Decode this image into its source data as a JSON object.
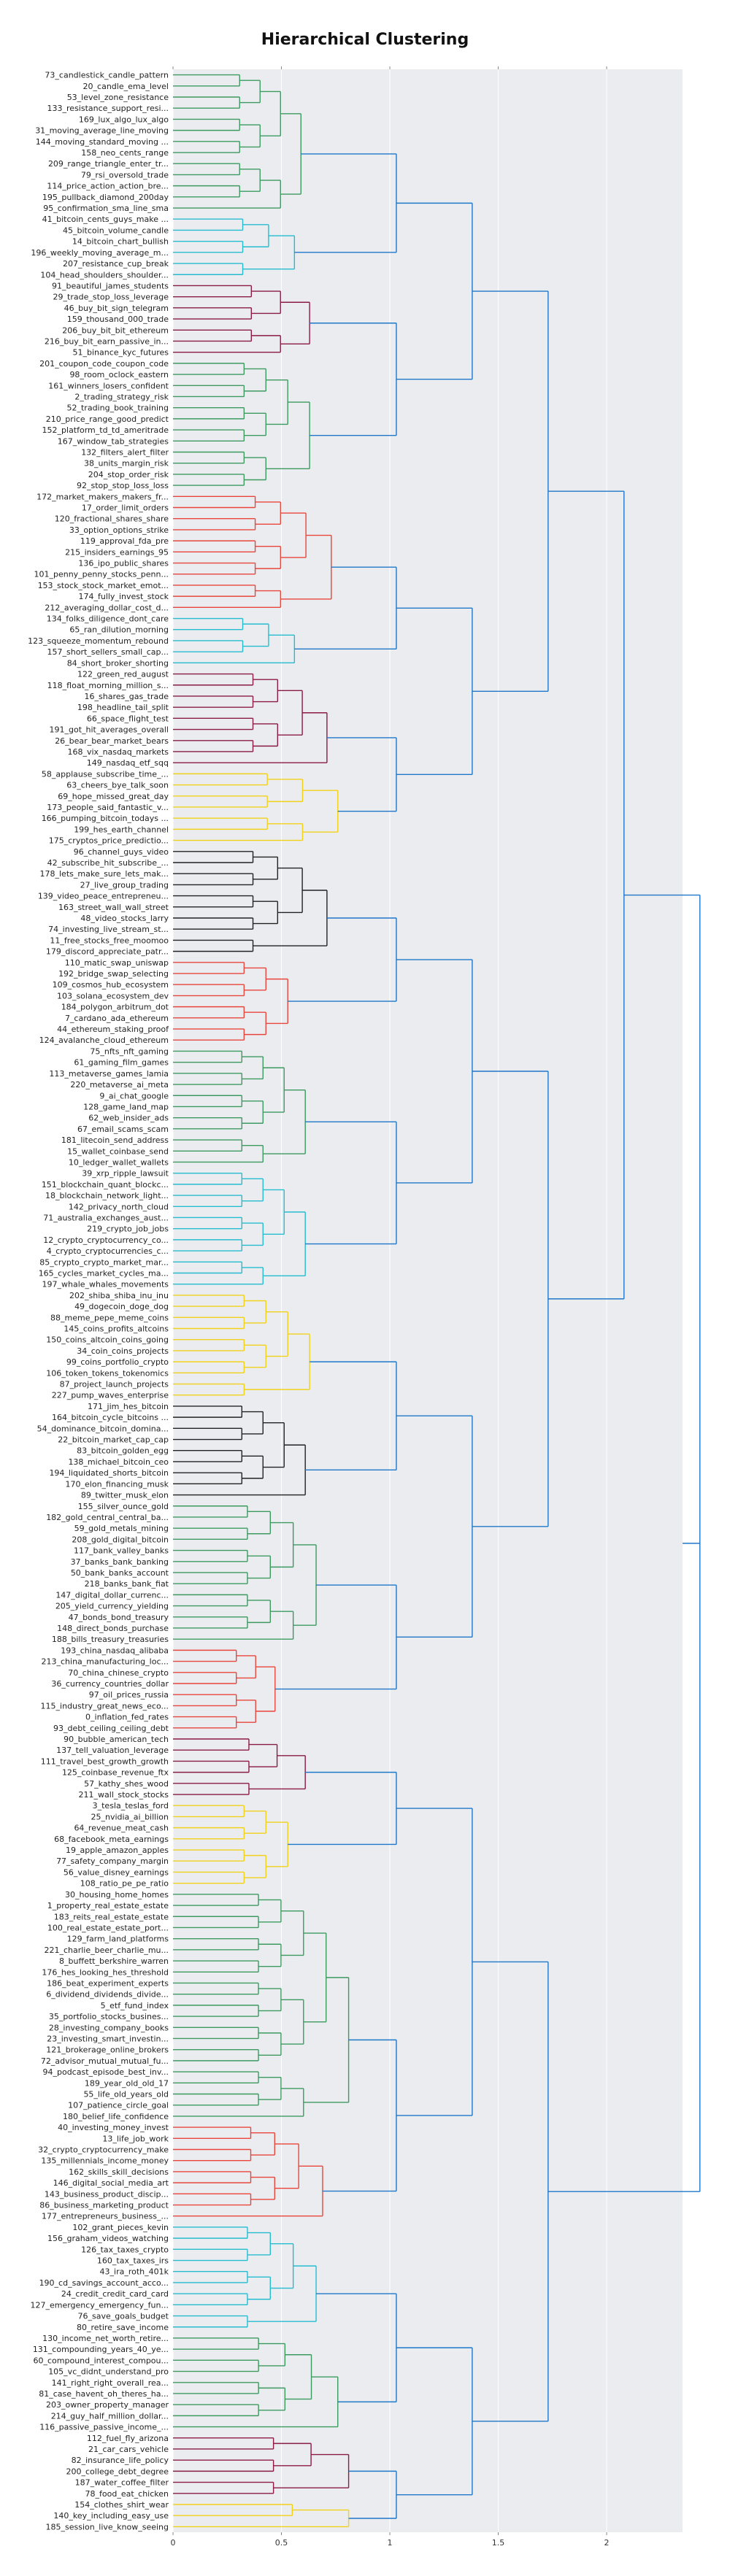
{
  "chart_data": {
    "type": "dendrogram",
    "title": "Hierarchical Clustering",
    "xlim": [
      0,
      2.35
    ],
    "x_ticks": [
      0,
      0.5,
      1,
      1.5,
      2
    ],
    "x_tick_labels": [
      "0",
      "0.5",
      "1",
      "1.5",
      "2"
    ],
    "grid": true,
    "leaves": [
      "73_candlestick_candle_pattern",
      "20_candle_ema_level",
      "53_level_zone_resistance",
      "133_resistance_support_resi...",
      "169_lux_algo_lux_algo",
      "31_moving_average_line_moving",
      "144_moving_standard_moving ...",
      "158_neo_cents_range",
      "209_range_triangle_enter_tr...",
      "79_rsi_oversold_trade",
      "114_price_action_action_bre...",
      "195_pullback_diamond_200day",
      "95_confirmation_sma_line_sma",
      "41_bitcoin_cents_guys_make ...",
      "45_bitcoin_volume_candle",
      "14_bitcoin_chart_bullish",
      "196_weekly_moving_average_m...",
      "207_resistance_cup_break",
      "104_head_shoulders_shoulder...",
      "91_beautiful_james_students",
      "29_trade_stop_loss_leverage",
      "46_buy_bit_sign_telegram",
      "159_thousand_000_trade",
      "206_buy_bit_bit_ethereum",
      "216_buy_bit_earn_passive_in...",
      "51_binance_kyc_futures",
      "201_coupon_code_coupon_code",
      "98_room_oclock_eastern",
      "161_winners_losers_confident",
      "2_trading_strategy_risk",
      "52_trading_book_training",
      "210_price_range_good_predict",
      "152_platform_td_td_ameritrade",
      "167_window_tab_strategies",
      "132_filters_alert_filter",
      "38_units_margin_risk",
      "204_stop_order_risk",
      "92_stop_stop_loss_loss",
      "172_market_makers_makers_fr...",
      "17_order_limit_orders",
      "120_fractional_shares_share",
      "33_option_options_strike",
      "119_approval_fda_pre",
      "215_insiders_earnings_95",
      "136_ipo_public_shares",
      "101_penny_penny_stocks_penn...",
      "153_stock_stock_market_emot...",
      "174_fully_invest_stock",
      "212_averaging_dollar_cost_d...",
      "134_folks_diligence_dont_care",
      "65_ran_dilution_morning",
      "123_squeeze_momentum_rebound",
      "157_short_sellers_small_cap...",
      "84_short_broker_shorting",
      "122_green_red_august",
      "118_float_morning_million_s...",
      "16_shares_gas_trade",
      "198_headline_tail_split",
      "66_space_flight_test",
      "191_got_hit_averages_overall",
      "26_bear_bear_market_bears",
      "168_vix_nasdaq_markets",
      "149_nasdaq_etf_sqq",
      "58_applause_subscribe_time_...",
      "63_cheers_bye_talk_soon",
      "69_hope_missed_great_day",
      "173_people_said_fantastic_v...",
      "166_pumping_bitcoin_todays ...",
      "199_hes_earth_channel",
      "175_cryptos_price_predictio...",
      "96_channel_guys_video",
      "42_subscribe_hit_subscribe_...",
      "178_lets_make_sure_lets_mak...",
      "27_live_group_trading",
      "139_video_peace_entrepreneu...",
      "163_street_wall_wall_street",
      "48_video_stocks_larry",
      "74_investing_live_stream_st...",
      "11_free_stocks_free_moomoo",
      "179_discord_appreciate_patr...",
      "110_matic_swap_uniswap",
      "192_bridge_swap_selecting",
      "109_cosmos_hub_ecosystem",
      "103_solana_ecosystem_dev",
      "184_polygon_arbitrum_dot",
      "7_cardano_ada_ethereum",
      "44_ethereum_staking_proof",
      "124_avalanche_cloud_ethereum",
      "75_nfts_nft_gaming",
      "61_gaming_film_games",
      "113_metaverse_games_lamia",
      "220_metaverse_ai_meta",
      "9_ai_chat_google",
      "128_game_land_map",
      "62_web_insider_ads",
      "67_email_scams_scam",
      "181_litecoin_send_address",
      "15_wallet_coinbase_send",
      "10_ledger_wallet_wallets",
      "39_xrp_ripple_lawsuit",
      "151_blockchain_quant_blockc...",
      "18_blockchain_network_light...",
      "142_privacy_north_cloud",
      "71_australia_exchanges_aust...",
      "219_crypto_job_jobs",
      "12_crypto_cryptocurrency_co...",
      "4_crypto_cryptocurrencies_c...",
      "85_crypto_crypto_market_mar...",
      "165_cycles_market_cycles_ma...",
      "197_whale_whales_movements",
      "202_shiba_shiba_inu_inu",
      "49_dogecoin_doge_dog",
      "88_meme_pepe_meme_coins",
      "145_coins_profits_altcoins",
      "150_coins_altcoin_coins_going",
      "34_coin_coins_projects",
      "99_coins_portfolio_crypto",
      "106_token_tokens_tokenomics",
      "87_project_launch_projects",
      "227_pump_waves_enterprise",
      "171_jim_hes_bitcoin",
      "164_bitcoin_cycle_bitcoins ...",
      "54_dominance_bitcoin_domina...",
      "22_bitcoin_market_cap_cap",
      "83_bitcoin_golden_egg",
      "138_michael_bitcoin_ceo",
      "194_liquidated_shorts_bitcoin",
      "170_elon_financing_musk",
      "89_twitter_musk_elon",
      "155_silver_ounce_gold",
      "182_gold_central_central_ba...",
      "59_gold_metals_mining",
      "208_gold_digital_bitcoin",
      "117_bank_valley_banks",
      "37_banks_bank_banking",
      "50_bank_banks_account",
      "218_banks_bank_fiat",
      "147_digital_dollar_currenc...",
      "205_yield_currency_yielding",
      "47_bonds_bond_treasury",
      "148_direct_bonds_purchase",
      "188_bills_treasury_treasuries",
      "193_china_nasdaq_alibaba",
      "213_china_manufacturing_loc...",
      "70_china_chinese_crypto",
      "36_currency_countries_dollar",
      "97_oil_prices_russia",
      "115_industry_great_news_eco...",
      "0_inflation_fed_rates",
      "93_debt_ceiling_ceiling_debt",
      "90_bubble_american_tech",
      "137_tell_valuation_leverage",
      "111_travel_best_growth_growth",
      "125_coinbase_revenue_ftx",
      "57_kathy_shes_wood",
      "211_wall_stock_stocks",
      "3_tesla_teslas_ford",
      "25_nvidia_ai_billion",
      "64_revenue_meat_cash",
      "68_facebook_meta_earnings",
      "19_apple_amazon_apples",
      "77_safety_company_margin",
      "56_value_disney_earnings",
      "108_ratio_pe_pe_ratio",
      "30_housing_home_homes",
      "1_property_real_estate_estate",
      "183_reits_real_estate_estate",
      "100_real_estate_estate_port...",
      "129_farm_land_platforms",
      "221_charlie_beer_charlie_mu...",
      "8_buffett_berkshire_warren",
      "176_hes_looking_hes_threshold",
      "186_beat_experiment_experts",
      "6_dividend_dividends_divide...",
      "5_etf_fund_index",
      "35_portfolio_stocks_busines...",
      "28_investing_company_books",
      "23_investing_smart_investin...",
      "121_brokerage_online_brokers",
      "72_advisor_mutual_mutual_fu...",
      "94_podcast_episode_best_inv...",
      "189_year_old_old_17",
      "55_life_old_years_old",
      "107_patience_circle_goal",
      "180_belief_life_confidence",
      "40_investing_money_invest",
      "13_life_job_work",
      "32_crypto_cryptocurrency_make",
      "135_millennials_income_money",
      "162_skills_skill_decisions",
      "146_digital_social_media_art",
      "143_business_product_discip...",
      "86_business_marketing_product",
      "177_entrepreneurs_business_...",
      "102_grant_pieces_kevin",
      "156_graham_videos_watching",
      "126_tax_taxes_crypto",
      "160_tax_taxes_irs",
      "43_ira_roth_401k",
      "190_cd_savings_account_acco...",
      "24_credit_credit_card_card",
      "127_emergency_emergency_fun...",
      "76_save_goals_budget",
      "80_retire_save_income",
      "130_income_net_worth_retire...",
      "131_compounding_years_40_ye...",
      "60_compound_interest_compou...",
      "105_vc_didnt_understand_pro",
      "141_right_right_overall_rea...",
      "81_case_havent_oh_theres_ha...",
      "203_owner_property_manager",
      "214_guy_half_million_dollar...",
      "116_passive_passive_income_...",
      "112_fuel_fly_arizona",
      "21_car_cars_vehicle",
      "82_insurance_life_policy",
      "200_college_debt_degree",
      "187_water_coffee_filter",
      "78_food_eat_chicken",
      "154_clothes_shirt_wear",
      "140_key_including_easy_use",
      "185_session_live_know_seeing"
    ]
  }
}
